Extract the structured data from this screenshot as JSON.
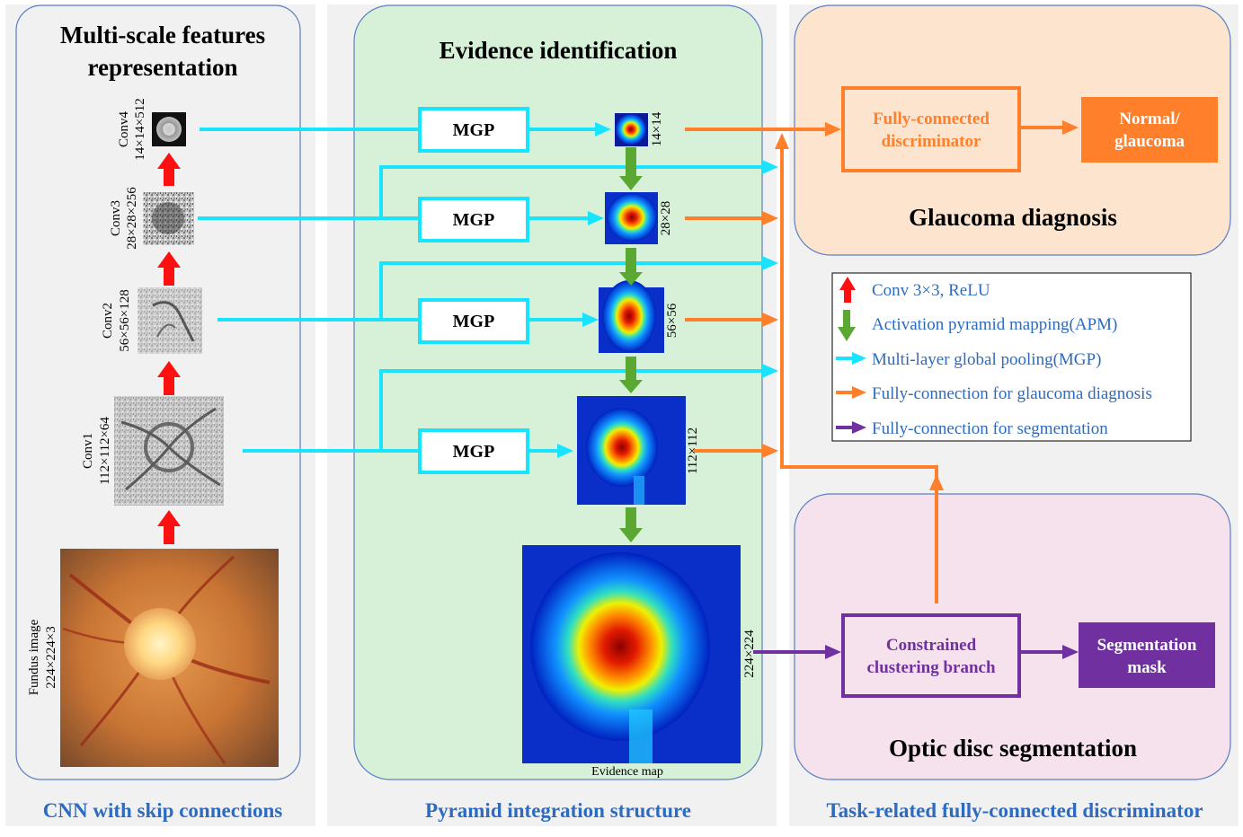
{
  "panels": {
    "left": {
      "title_line1": "Multi-scale features",
      "title_line2": "representation",
      "caption": "CNN with skip connections"
    },
    "middle": {
      "title": "Evidence identification",
      "caption": "Pyramid integration structure"
    },
    "right": {
      "caption": "Task-related fully-connected discriminator"
    }
  },
  "layers": [
    {
      "name": "Conv4",
      "dims": "14×14×512"
    },
    {
      "name": "Conv3",
      "dims": "28×28×256"
    },
    {
      "name": "Conv2",
      "dims": "56×56×128"
    },
    {
      "name": "Conv1",
      "dims": "112×112×64"
    },
    {
      "name": "Fundus image",
      "dims": "224×224×3"
    }
  ],
  "mgp_label": "MGP",
  "maps": [
    {
      "size": "14×14"
    },
    {
      "size": "28×28"
    },
    {
      "size": "56×56"
    },
    {
      "size": "112×112"
    },
    {
      "size": "224×224"
    }
  ],
  "evidence_map_label": "Evidence map",
  "glaucoma": {
    "discriminator_line1": "Fully-connected",
    "discriminator_line2": "discriminator",
    "output_line1": "Normal/",
    "output_line2": "glaucoma",
    "title": "Glaucoma diagnosis"
  },
  "segmentation": {
    "branch_line1": "Constrained",
    "branch_line2": "clustering branch",
    "output_line1": "Segmentation",
    "output_line2": "mask",
    "title": "Optic disc segmentation"
  },
  "legend": [
    {
      "label": "Conv 3×3, ReLU",
      "color": "#ff1010",
      "icon": "up-arrow"
    },
    {
      "label": "Activation pyramid mapping(APM)",
      "color": "#5aa832",
      "icon": "down-arrow"
    },
    {
      "label": "Multi-layer global pooling(MGP)",
      "color": "#18e4ff",
      "icon": "right-arrow"
    },
    {
      "label": "Fully-connection for glaucoma diagnosis",
      "color": "#ff7f2a",
      "icon": "right-arrow"
    },
    {
      "label": "Fully-connection for segmentation",
      "color": "#7030a0",
      "icon": "right-arrow"
    }
  ],
  "colors": {
    "title_text": "#2e6bbf",
    "cyan": "#18e4ff",
    "orange": "#ff7f2a",
    "purple": "#7030a0",
    "green": "#5aa832",
    "red": "#ff1010",
    "orange_panel": "#fde4cf",
    "pink_panel": "#f6e2ec",
    "green_panel": "#d6f1d8"
  }
}
